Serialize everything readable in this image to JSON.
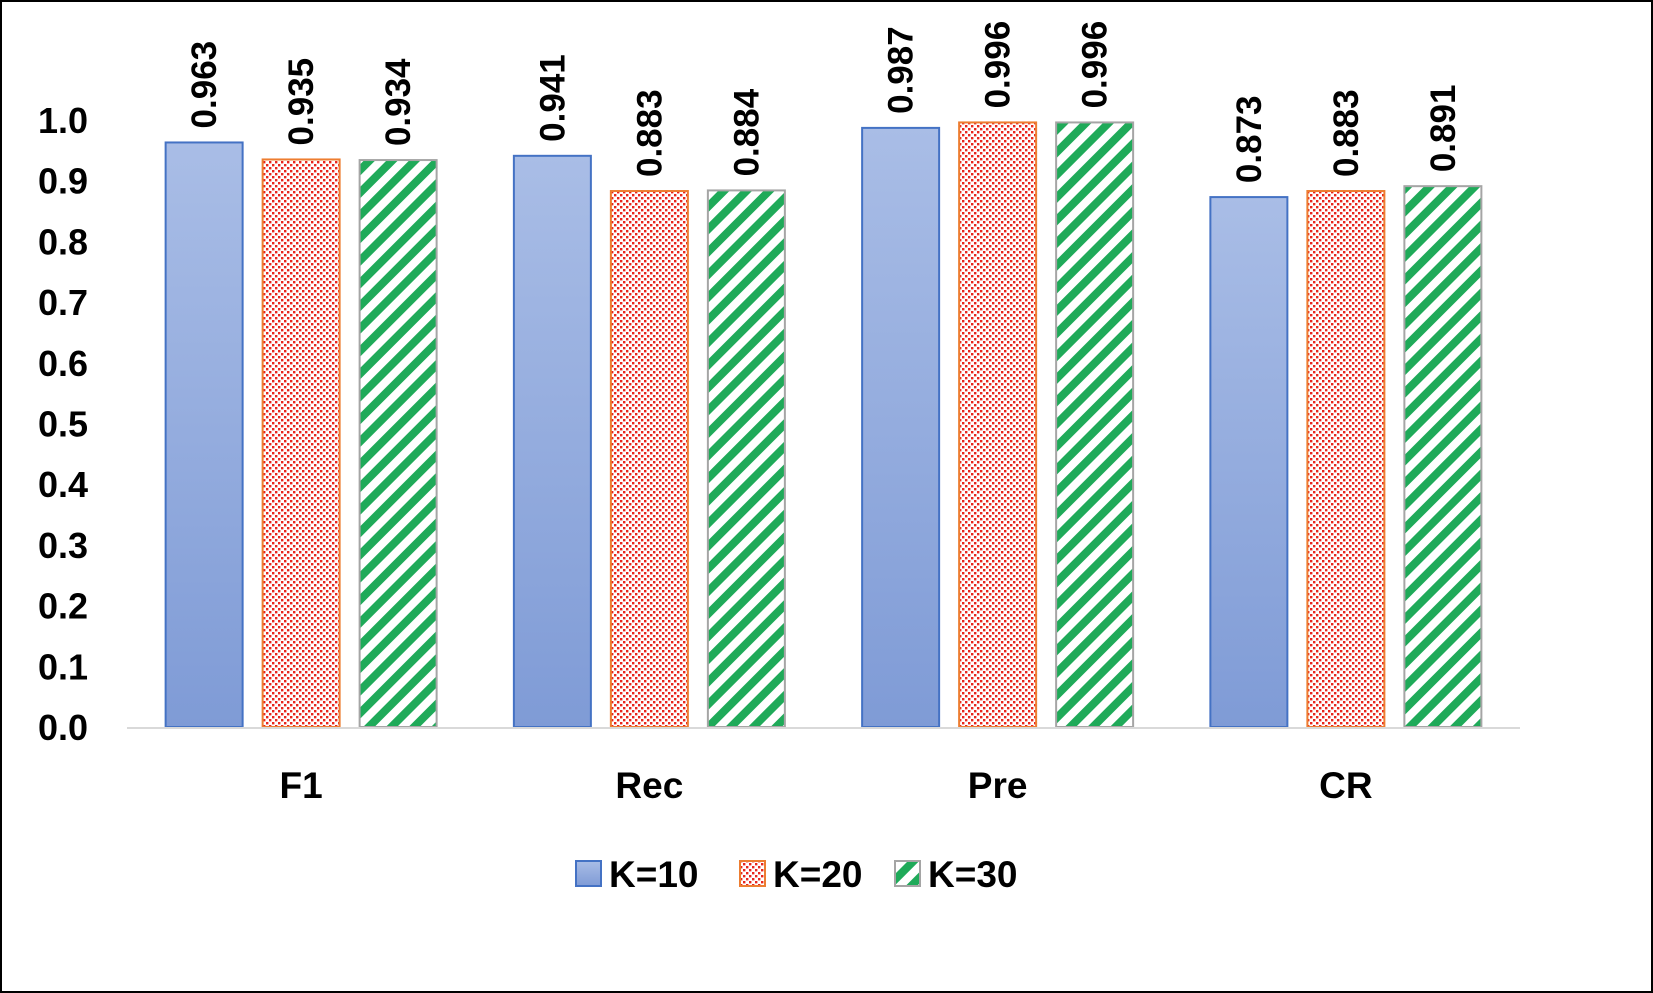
{
  "chart_data": {
    "type": "bar",
    "title": "",
    "xlabel": "",
    "ylabel": "",
    "categories": [
      "F1",
      "Rec",
      "Pre",
      "CR"
    ],
    "series": [
      {
        "name": "K=10",
        "values": [
          0.963,
          0.941,
          0.987,
          0.873
        ],
        "color": "#8faadc",
        "pattern": "solid-gradient"
      },
      {
        "name": "K=20",
        "values": [
          0.935,
          0.883,
          0.996,
          0.883
        ],
        "color": "#e8251d",
        "pattern": "dotted"
      },
      {
        "name": "K=30",
        "values": [
          0.934,
          0.884,
          0.996,
          0.891
        ],
        "color": "#1faa59",
        "pattern": "diagonal-stripes"
      }
    ],
    "ylim": [
      0.0,
      1.0
    ],
    "yticks": [
      "0.0",
      "0.1",
      "0.2",
      "0.3",
      "0.4",
      "0.5",
      "0.6",
      "0.7",
      "0.8",
      "0.9",
      "1.0"
    ],
    "grid": false,
    "legend_position": "bottom-center",
    "colors": {
      "k10_fill_light": "#a9bde6",
      "k10_fill_dark": "#7f9bd6",
      "k10_border": "#4472c4",
      "k20_dots": "#e8251d",
      "k20_border": "#ed7d31",
      "k30_stripes": "#1faa59",
      "k30_border": "#a5a5a5",
      "axis_line": "#d9d9d9"
    }
  }
}
